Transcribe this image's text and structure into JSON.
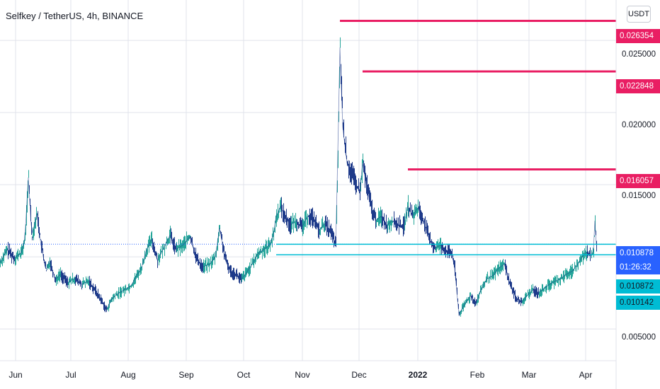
{
  "header": {
    "title": "Selfkey / TetherUS, 4h, BINANCE",
    "currency": "USDT"
  },
  "colors": {
    "candle_up": "#26a69a",
    "candle_down": "#2962ff",
    "bar_line": "#1e3a8a",
    "resistance": "#e91e63",
    "support": "#00bcd4",
    "current_price": "#2962ff",
    "grid": "#e0e3eb"
  },
  "price_labels": {
    "r1": "0.026354",
    "r2": "0.022848",
    "r3": "0.016057",
    "current": "0.010878",
    "countdown": "01:26:32",
    "s1": "0.010872",
    "s2": "0.010142"
  },
  "chart_data": {
    "type": "line",
    "title": "Selfkey / TetherUS, 4h, BINANCE",
    "xlabel": "",
    "ylabel": "",
    "y_ticks": [
      "0.025000",
      "0.020000",
      "0.015000",
      "0.005000"
    ],
    "x_ticks": [
      "Jun",
      "Jul",
      "Aug",
      "Sep",
      "Oct",
      "Nov",
      "Dec",
      "2022",
      "Feb",
      "Mar",
      "Apr"
    ],
    "ylim": [
      0.0028,
      0.0278
    ],
    "series": [
      {
        "values": [
          [
            0,
            0.0096
          ],
          [
            10,
            0.0105
          ],
          [
            20,
            0.0099
          ],
          [
            30,
            0.0103
          ],
          [
            35,
            0.0112
          ],
          [
            40,
            0.0155
          ],
          [
            45,
            0.0114
          ],
          [
            52,
            0.013
          ],
          [
            58,
            0.0108
          ],
          [
            65,
            0.009
          ],
          [
            70,
            0.0097
          ],
          [
            78,
            0.0084
          ],
          [
            85,
            0.0088
          ],
          [
            95,
            0.0082
          ],
          [
            105,
            0.0085
          ],
          [
            115,
            0.0081
          ],
          [
            125,
            0.0083
          ],
          [
            135,
            0.0076
          ],
          [
            145,
            0.0068
          ],
          [
            150,
            0.0063
          ],
          [
            158,
            0.0071
          ],
          [
            165,
            0.0074
          ],
          [
            175,
            0.0077
          ],
          [
            185,
            0.008
          ],
          [
            192,
            0.0086
          ],
          [
            200,
            0.0093
          ],
          [
            207,
            0.0105
          ],
          [
            214,
            0.0112
          ],
          [
            222,
            0.0098
          ],
          [
            230,
            0.0105
          ],
          [
            240,
            0.0115
          ],
          [
            248,
            0.0105
          ],
          [
            258,
            0.0108
          ],
          [
            268,
            0.0114
          ],
          [
            278,
            0.0098
          ],
          [
            286,
            0.0093
          ],
          [
            296,
            0.0095
          ],
          [
            304,
            0.01
          ],
          [
            310,
            0.012
          ],
          [
            318,
            0.0098
          ],
          [
            325,
            0.009
          ],
          [
            333,
            0.0088
          ],
          [
            340,
            0.0084
          ],
          [
            348,
            0.0089
          ],
          [
            356,
            0.0095
          ],
          [
            364,
            0.0102
          ],
          [
            372,
            0.0105
          ],
          [
            380,
            0.0108
          ],
          [
            386,
            0.0115
          ],
          [
            390,
            0.0128
          ],
          [
            396,
            0.0135
          ],
          [
            402,
            0.0128
          ],
          [
            410,
            0.0122
          ],
          [
            418,
            0.0125
          ],
          [
            426,
            0.012
          ],
          [
            434,
            0.0128
          ],
          [
            442,
            0.0127
          ],
          [
            450,
            0.0118
          ],
          [
            458,
            0.0123
          ],
          [
            466,
            0.0118
          ],
          [
            474,
            0.0108
          ],
          [
            477,
            0.017
          ],
          [
            480,
            0.0245
          ],
          [
            484,
            0.019
          ],
          [
            490,
            0.0165
          ],
          [
            496,
            0.0158
          ],
          [
            502,
            0.015
          ],
          [
            508,
            0.0145
          ],
          [
            512,
            0.0165
          ],
          [
            518,
            0.0148
          ],
          [
            524,
            0.0135
          ],
          [
            530,
            0.0125
          ],
          [
            538,
            0.0128
          ],
          [
            546,
            0.0122
          ],
          [
            554,
            0.0125
          ],
          [
            562,
            0.0122
          ],
          [
            570,
            0.0121
          ],
          [
            576,
            0.0135
          ],
          [
            582,
            0.0128
          ],
          [
            590,
            0.0134
          ],
          [
            598,
            0.0125
          ],
          [
            606,
            0.0112
          ],
          [
            614,
            0.0106
          ],
          [
            622,
            0.0108
          ],
          [
            630,
            0.0104
          ],
          [
            638,
            0.0102
          ],
          [
            642,
            0.0092
          ],
          [
            648,
            0.006
          ],
          [
            656,
            0.0067
          ],
          [
            664,
            0.0073
          ],
          [
            672,
            0.0068
          ],
          [
            680,
            0.0078
          ],
          [
            688,
            0.0085
          ],
          [
            696,
            0.0087
          ],
          [
            704,
            0.0092
          ],
          [
            712,
            0.0095
          ],
          [
            720,
            0.0081
          ],
          [
            728,
            0.0072
          ],
          [
            736,
            0.0068
          ],
          [
            744,
            0.0073
          ],
          [
            752,
            0.0077
          ],
          [
            760,
            0.0075
          ],
          [
            768,
            0.0078
          ],
          [
            776,
            0.0081
          ],
          [
            784,
            0.0083
          ],
          [
            792,
            0.0085
          ],
          [
            800,
            0.0088
          ],
          [
            808,
            0.009
          ],
          [
            816,
            0.0095
          ],
          [
            822,
            0.01
          ],
          [
            828,
            0.0103
          ],
          [
            834,
            0.0101
          ],
          [
            838,
            0.0104
          ],
          [
            840,
            0.0125
          ],
          [
            842,
            0.0109
          ]
        ]
      }
    ],
    "horizontal_levels": [
      {
        "value": 0.026354,
        "kind": "resistance"
      },
      {
        "value": 0.022848,
        "kind": "resistance"
      },
      {
        "value": 0.016057,
        "kind": "resistance"
      },
      {
        "value": 0.010878,
        "kind": "current"
      },
      {
        "value": 0.010872,
        "kind": "support"
      },
      {
        "value": 0.010142,
        "kind": "support"
      }
    ],
    "grid": true,
    "legend": "none"
  }
}
